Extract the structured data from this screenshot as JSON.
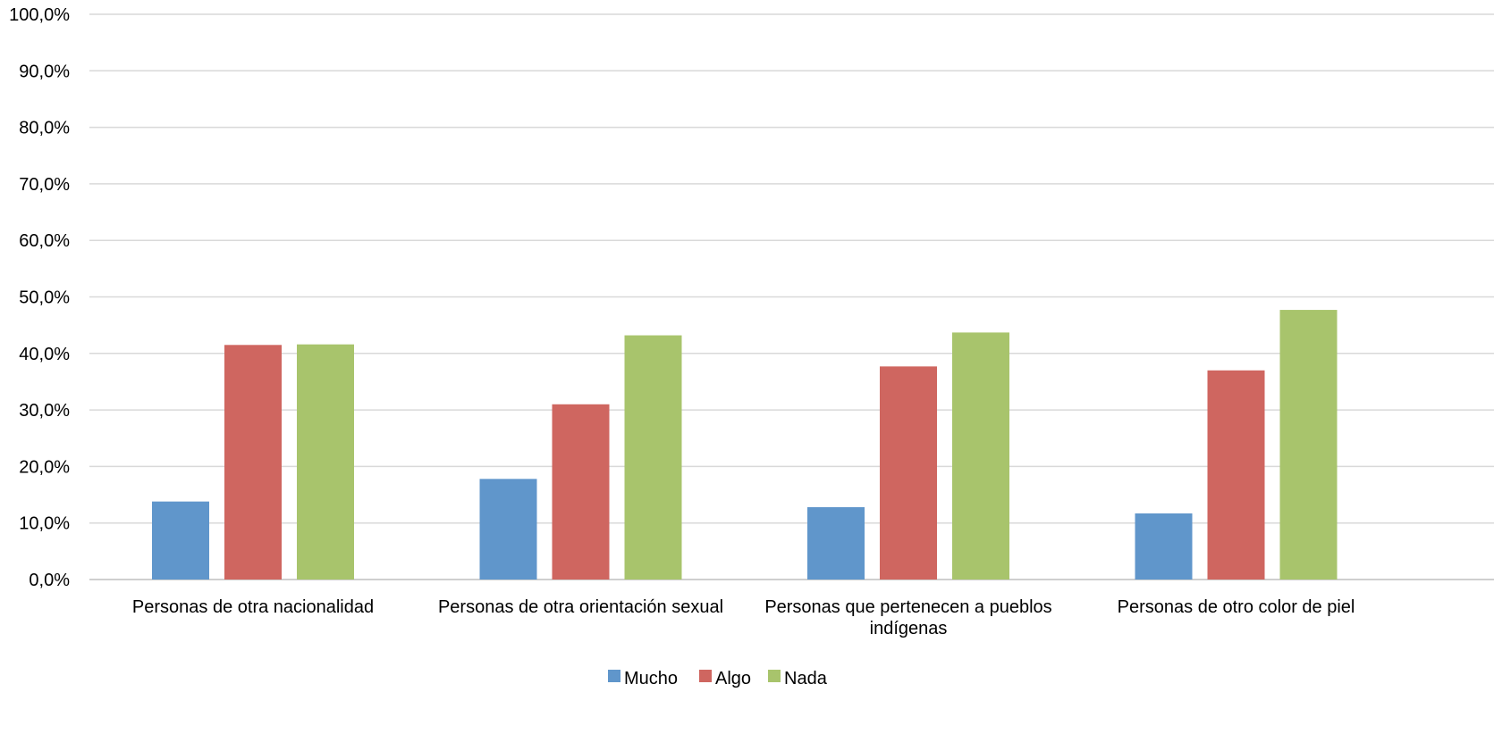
{
  "chart_data": {
    "type": "bar",
    "title": "",
    "xlabel": "",
    "ylabel": "",
    "ylim": [
      0,
      100
    ],
    "y_ticks": [
      "0,0%",
      "10,0%",
      "20,0%",
      "30,0%",
      "40,0%",
      "50,0%",
      "60,0%",
      "70,0%",
      "80,0%",
      "90,0%",
      "100,0%"
    ],
    "y_tick_values": [
      0,
      10,
      20,
      30,
      40,
      50,
      60,
      70,
      80,
      90,
      100
    ],
    "grid": true,
    "legend_position": "bottom",
    "categories": [
      [
        "Personas de otra nacionalidad"
      ],
      [
        "Personas de otra orientación sexual"
      ],
      [
        "Personas que pertenecen a pueblos",
        "indígenas"
      ],
      [
        "Personas de otro color de piel"
      ]
    ],
    "series": [
      {
        "name": "Mucho",
        "color": "#6096cb",
        "values": [
          13.8,
          17.8,
          12.8,
          11.7
        ]
      },
      {
        "name": "Algo",
        "color": "#cf6660",
        "values": [
          41.5,
          31.0,
          37.7,
          37.0
        ]
      },
      {
        "name": "Nada",
        "color": "#a8c46c",
        "values": [
          41.6,
          43.2,
          43.7,
          47.7
        ]
      }
    ]
  }
}
